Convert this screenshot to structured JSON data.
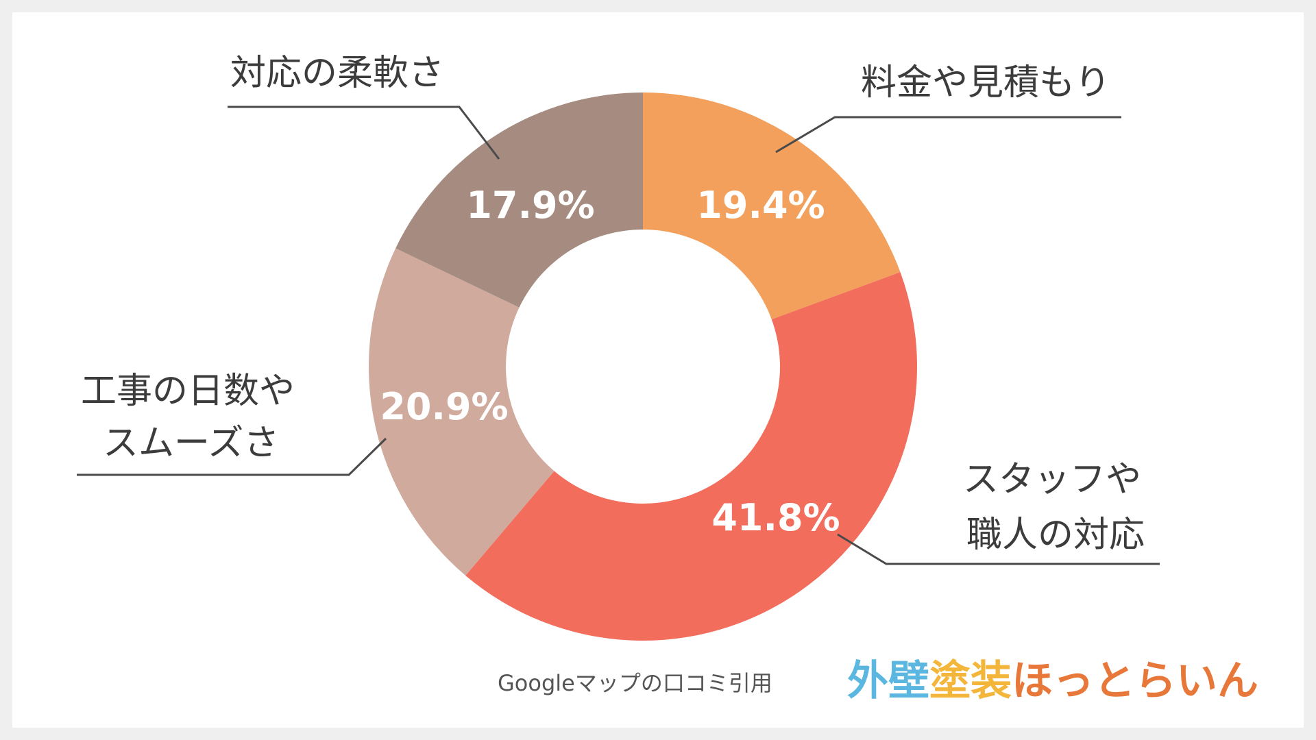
{
  "chart_data": {
    "type": "pie",
    "title": "",
    "slices": [
      {
        "label": "料金や見積もり",
        "value": 19.4,
        "value_label": "19.4%",
        "color": "#f2a05b"
      },
      {
        "label": "スタッフや職人の対応",
        "value": 41.8,
        "value_label": "41.8%",
        "color": "#f26d5c"
      },
      {
        "label": "工事の日数やスムーズさ",
        "value": 20.9,
        "value_label": "20.9%",
        "color": "#d0aa9c"
      },
      {
        "label": "対応の柔軟さ",
        "value": 17.9,
        "value_label": "17.9%",
        "color": "#a68c80"
      }
    ],
    "legend": "none"
  },
  "labels": {
    "slice_0": [
      "料金や見積もり"
    ],
    "slice_1": [
      "スタッフや",
      "職人の対応"
    ],
    "slice_2": [
      "工事の日数や",
      "スムーズさ"
    ],
    "slice_3": [
      "対応の柔軟さ"
    ]
  },
  "source_note": "Googleマップの口コミ引用",
  "logo": {
    "text": "外壁塗装ほっとらいん",
    "colors": {
      "part1": "#5bb7e0",
      "part2": "#f3b63a",
      "part3": "#e8783a"
    }
  }
}
